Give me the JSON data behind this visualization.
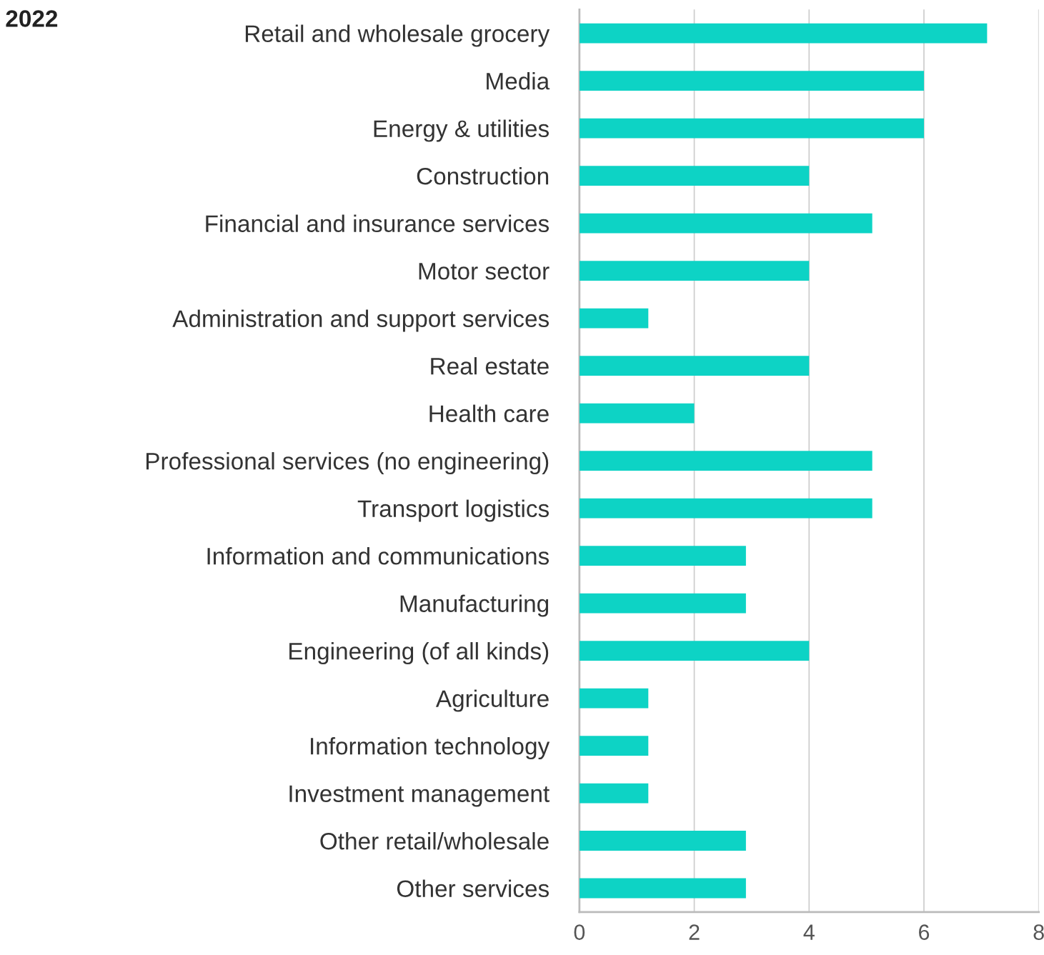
{
  "chart_data": {
    "type": "bar",
    "orientation": "horizontal",
    "title": "2022",
    "categories": [
      "Retail and wholesale grocery",
      "Media",
      "Energy & utilities",
      "Construction",
      "Financial and insurance services",
      "Motor sector",
      "Administration and support services",
      "Real estate",
      "Health care",
      "Professional services (no engineering)",
      "Transport logistics",
      "Information and communications",
      "Manufacturing",
      "Engineering (of all kinds)",
      "Agriculture",
      "Information technology",
      "Investment management",
      "Other retail/wholesale",
      "Other services"
    ],
    "values": [
      7.1,
      6,
      6,
      4,
      5.1,
      4,
      1.2,
      4,
      2,
      5.1,
      5.1,
      2.9,
      2.9,
      4,
      1.2,
      1.2,
      1.2,
      2.9,
      2.9
    ],
    "color": "#0dd3c5",
    "xlim": [
      0,
      8
    ],
    "xticks": [
      0,
      2,
      4,
      6,
      8
    ],
    "grid": "x",
    "legend": false
  }
}
